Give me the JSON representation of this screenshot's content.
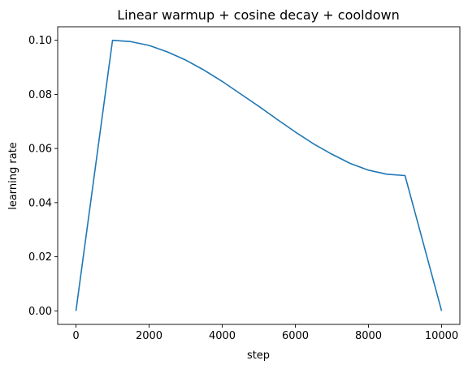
{
  "chart_data": {
    "type": "line",
    "title": "Linear warmup + cosine decay + cooldown",
    "xlabel": "step",
    "ylabel": "learning rate",
    "xlim": [
      -500,
      10500
    ],
    "ylim": [
      -0.005,
      0.105
    ],
    "xticks": [
      0,
      2000,
      4000,
      6000,
      8000,
      10000
    ],
    "xtick_labels": [
      "0",
      "2000",
      "4000",
      "6000",
      "8000",
      "10000"
    ],
    "yticks": [
      0.0,
      0.02,
      0.04,
      0.06,
      0.08,
      0.1
    ],
    "ytick_labels": [
      "0.00",
      "0.02",
      "0.04",
      "0.06",
      "0.08",
      "0.10"
    ],
    "grid": false,
    "legend": "none",
    "color": "#1f77b4",
    "series": [
      {
        "x": [
          0,
          1000,
          1500,
          2000,
          2500,
          3000,
          3500,
          4000,
          4500,
          5000,
          5500,
          6000,
          6500,
          7000,
          7500,
          8000,
          8500,
          9000,
          10000
        ],
        "y": [
          0.0,
          0.1,
          0.0995,
          0.0981,
          0.0957,
          0.0927,
          0.089,
          0.0848,
          0.0802,
          0.0756,
          0.0708,
          0.0661,
          0.0617,
          0.0579,
          0.0545,
          0.052,
          0.0505,
          0.05,
          0.0
        ]
      }
    ]
  }
}
